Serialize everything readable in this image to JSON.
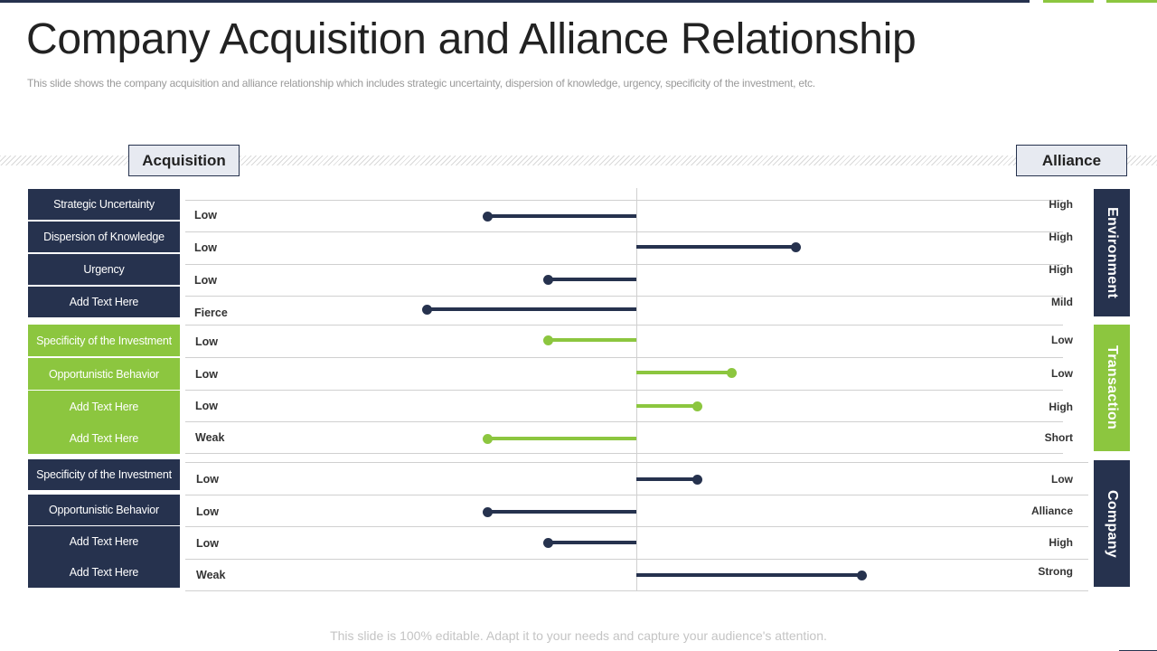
{
  "title": "Company Acquisition and Alliance Relationship",
  "subtitle": "This slide shows the company acquisition and alliance relationship which includes strategic uncertainty, dispersion of knowledge, urgency, specificity of the investment, etc.",
  "acquisition_label": "Acquisition",
  "alliance_label": "Alliance",
  "footer": "This slide is 100% editable. Adapt it to your needs and capture your audience's attention.",
  "colors": {
    "navy": "#26324e",
    "green": "#8cc63f",
    "header_fill": "#e7eaf1"
  },
  "groups": [
    {
      "name": "Environment",
      "color": "navy",
      "rows": [
        {
          "label": "Strategic Uncertainty",
          "low": "Low",
          "high": "High",
          "side": "left",
          "value": 0.47
        },
        {
          "label": "Dispersion of Knowledge",
          "low": "Low",
          "high": "High",
          "side": "right",
          "value": 0.5
        },
        {
          "label": "Urgency",
          "low": "Low",
          "high": "High",
          "side": "left",
          "value": 0.28
        },
        {
          "label": "Add Text Here",
          "low": "Fierce",
          "high": "Mild",
          "side": "left",
          "value": 0.66
        }
      ]
    },
    {
      "name": "Transaction",
      "color": "green",
      "rows": [
        {
          "label": "Specificity of the Investment",
          "low": "Low",
          "high": "Low",
          "side": "left",
          "value": 0.28
        },
        {
          "label": "Opportunistic Behavior",
          "low": "Low",
          "high": "Low",
          "side": "right",
          "value": 0.3
        },
        {
          "label": "Add Text Here",
          "low": "Low",
          "high": "High",
          "side": "right",
          "value": 0.19
        },
        {
          "label": "Add Text Here",
          "low": "Weak",
          "high": "Short",
          "side": "left",
          "value": 0.47
        }
      ]
    },
    {
      "name": "Company",
      "color": "navy",
      "rows": [
        {
          "label": "Specificity of the Investment",
          "low": "Low",
          "high": "Low",
          "side": "right",
          "value": 0.19
        },
        {
          "label": "Opportunistic Behavior",
          "low": "Low",
          "high": "Alliance",
          "side": "left",
          "value": 0.47
        },
        {
          "label": "Add Text Here",
          "low": "Low",
          "high": "High",
          "side": "left",
          "value": 0.28
        },
        {
          "label": "Add Text Here",
          "low": "Weak",
          "high": "Strong",
          "side": "right",
          "value": 0.71
        }
      ]
    }
  ]
}
